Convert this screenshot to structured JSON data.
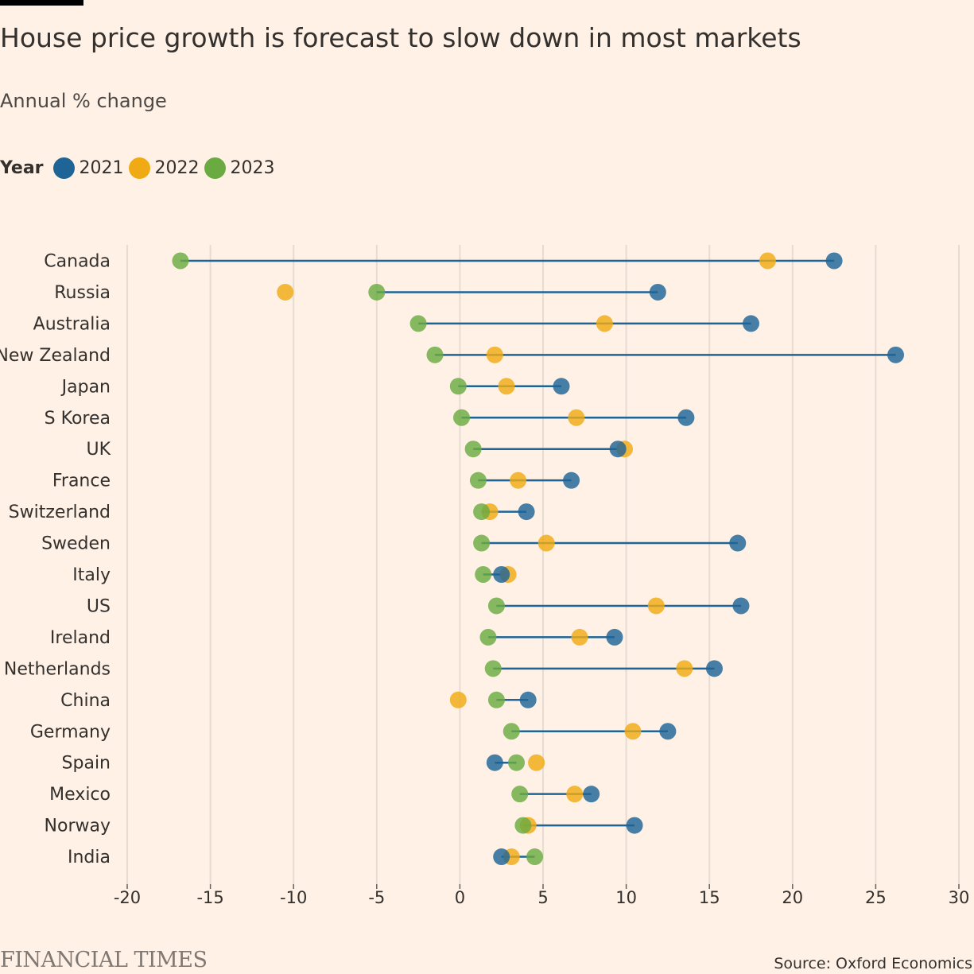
{
  "header": {
    "title": "House price growth is forecast to slow down in most markets",
    "subtitle": "Annual % change"
  },
  "legend": {
    "title": "Year",
    "items": [
      {
        "label": "2021",
        "color": "#1e6496"
      },
      {
        "label": "2022",
        "color": "#f0ab14"
      },
      {
        "label": "2023",
        "color": "#6aab41"
      }
    ]
  },
  "footer": {
    "brand": "FINANCIAL TIMES",
    "source": "Source: Oxford Economics"
  },
  "chart_data": {
    "type": "scatter",
    "orientation": "horizontal-dot-plot",
    "xlim": [
      -20,
      30
    ],
    "xticks": [
      -20,
      -15,
      -10,
      -5,
      0,
      5,
      10,
      15,
      20,
      25,
      30
    ],
    "grid": true,
    "categories": [
      "Canada",
      "Russia",
      "Australia",
      "New Zealand",
      "Japan",
      "S Korea",
      "UK",
      "France",
      "Switzerland",
      "Sweden",
      "Italy",
      "US",
      "Ireland",
      "Netherlands",
      "China",
      "Germany",
      "Spain",
      "Mexico",
      "Norway",
      "India"
    ],
    "series": [
      {
        "name": "2021",
        "color": "#1e6496",
        "values": [
          22.5,
          11.9,
          17.5,
          26.2,
          6.1,
          13.6,
          9.5,
          6.7,
          4.0,
          16.7,
          2.5,
          16.9,
          9.3,
          15.3,
          4.1,
          12.5,
          2.1,
          7.9,
          10.5,
          2.5
        ]
      },
      {
        "name": "2022",
        "color": "#f0ab14",
        "values": [
          18.5,
          -10.5,
          8.7,
          2.1,
          2.8,
          7.0,
          9.9,
          3.5,
          1.8,
          5.2,
          2.9,
          11.8,
          7.2,
          13.5,
          -0.1,
          10.4,
          4.6,
          6.9,
          4.1,
          3.1
        ]
      },
      {
        "name": "2023",
        "color": "#6aab41",
        "values": [
          -16.8,
          -5.0,
          -2.5,
          -1.5,
          -0.1,
          0.1,
          0.8,
          1.1,
          1.3,
          1.3,
          1.4,
          2.2,
          1.7,
          2.0,
          2.2,
          3.1,
          3.4,
          3.6,
          3.8,
          4.5
        ]
      }
    ]
  }
}
